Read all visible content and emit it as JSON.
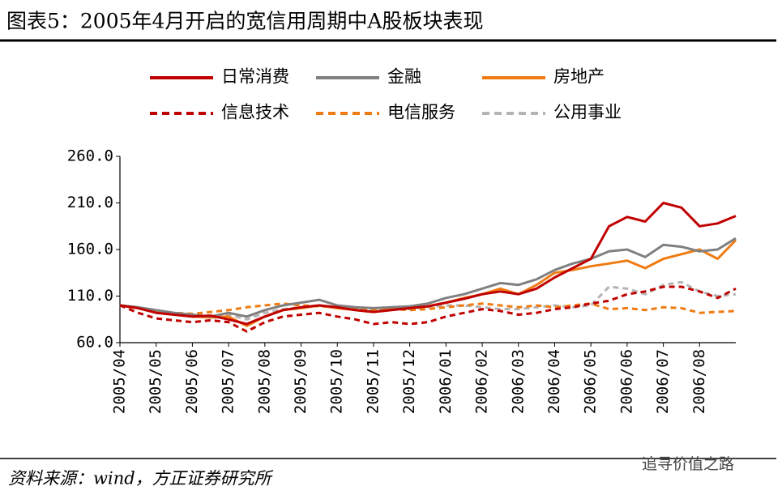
{
  "chart_data": {
    "type": "line",
    "title": "图表5：2005年4月开启的宽信用周期中A股板块表现",
    "source": "资料来源：wind，方正证券研究所",
    "watermark": "追寻价值之路",
    "categories": [
      "2005/04",
      null,
      "2005/05",
      null,
      "2005/06",
      null,
      "2005/07",
      null,
      "2005/08",
      null,
      "2005/09",
      null,
      "2005/10",
      null,
      "2005/11",
      null,
      "2005/12",
      null,
      "2006/01",
      null,
      "2006/02",
      null,
      "2006/03",
      null,
      "2006/04",
      null,
      "2006/05",
      null,
      "2006/06",
      null,
      "2006/07",
      null,
      "2006/08",
      null,
      null
    ],
    "ylim": [
      60,
      260
    ],
    "yticks": [
      {
        "value": 60,
        "label": "60.0"
      },
      {
        "value": 110,
        "label": "110.0"
      },
      {
        "value": 160,
        "label": "160.0"
      },
      {
        "value": 210,
        "label": "210.0"
      },
      {
        "value": 260,
        "label": "260.0"
      }
    ],
    "series": [
      {
        "name": "日常消费",
        "color": "#c00000",
        "dash": false,
        "values": [
          100,
          97,
          92,
          90,
          88,
          89,
          85,
          80,
          88,
          95,
          98,
          100,
          98,
          95,
          93,
          95,
          97,
          99,
          103,
          107,
          112,
          115,
          112,
          118,
          130,
          140,
          150,
          185,
          195,
          190,
          210,
          205,
          185,
          188,
          196
        ]
      },
      {
        "name": "金融",
        "color": "#808080",
        "dash": false,
        "values": [
          100,
          98,
          95,
          92,
          90,
          88,
          92,
          88,
          95,
          100,
          103,
          106,
          100,
          98,
          97,
          98,
          99,
          102,
          108,
          112,
          118,
          124,
          122,
          128,
          138,
          145,
          150,
          158,
          160,
          152,
          165,
          163,
          158,
          160,
          172
        ]
      },
      {
        "name": "房地产",
        "color": "#f07b13",
        "dash": false,
        "values": [
          100,
          97,
          93,
          90,
          88,
          87,
          88,
          78,
          88,
          95,
          97,
          100,
          97,
          95,
          93,
          96,
          97,
          99,
          103,
          108,
          112,
          118,
          112,
          122,
          135,
          138,
          142,
          145,
          148,
          140,
          150,
          155,
          160,
          150,
          170
        ]
      },
      {
        "name": "信息技术",
        "color": "#c00000",
        "dash": true,
        "values": [
          100,
          92,
          86,
          84,
          82,
          84,
          82,
          72,
          82,
          88,
          90,
          92,
          88,
          85,
          80,
          82,
          80,
          82,
          88,
          92,
          96,
          94,
          90,
          92,
          96,
          98,
          102,
          105,
          112,
          115,
          120,
          120,
          115,
          108,
          118
        ]
      },
      {
        "name": "电信服务",
        "color": "#f07b13",
        "dash": true,
        "values": [
          100,
          97,
          93,
          92,
          91,
          93,
          95,
          98,
          100,
          102,
          100,
          99,
          98,
          97,
          95,
          96,
          95,
          96,
          98,
          100,
          102,
          100,
          98,
          100,
          98,
          100,
          102,
          96,
          97,
          95,
          98,
          97,
          92,
          93,
          94
        ]
      },
      {
        "name": "公用事业",
        "color": "#b4b4b4",
        "dash": true,
        "values": [
          100,
          98,
          93,
          90,
          90,
          88,
          90,
          85,
          92,
          96,
          98,
          100,
          97,
          96,
          94,
          97,
          96,
          98,
          100,
          100,
          98,
          96,
          96,
          98,
          100,
          98,
          100,
          120,
          118,
          112,
          122,
          125,
          115,
          110,
          112
        ]
      }
    ]
  }
}
